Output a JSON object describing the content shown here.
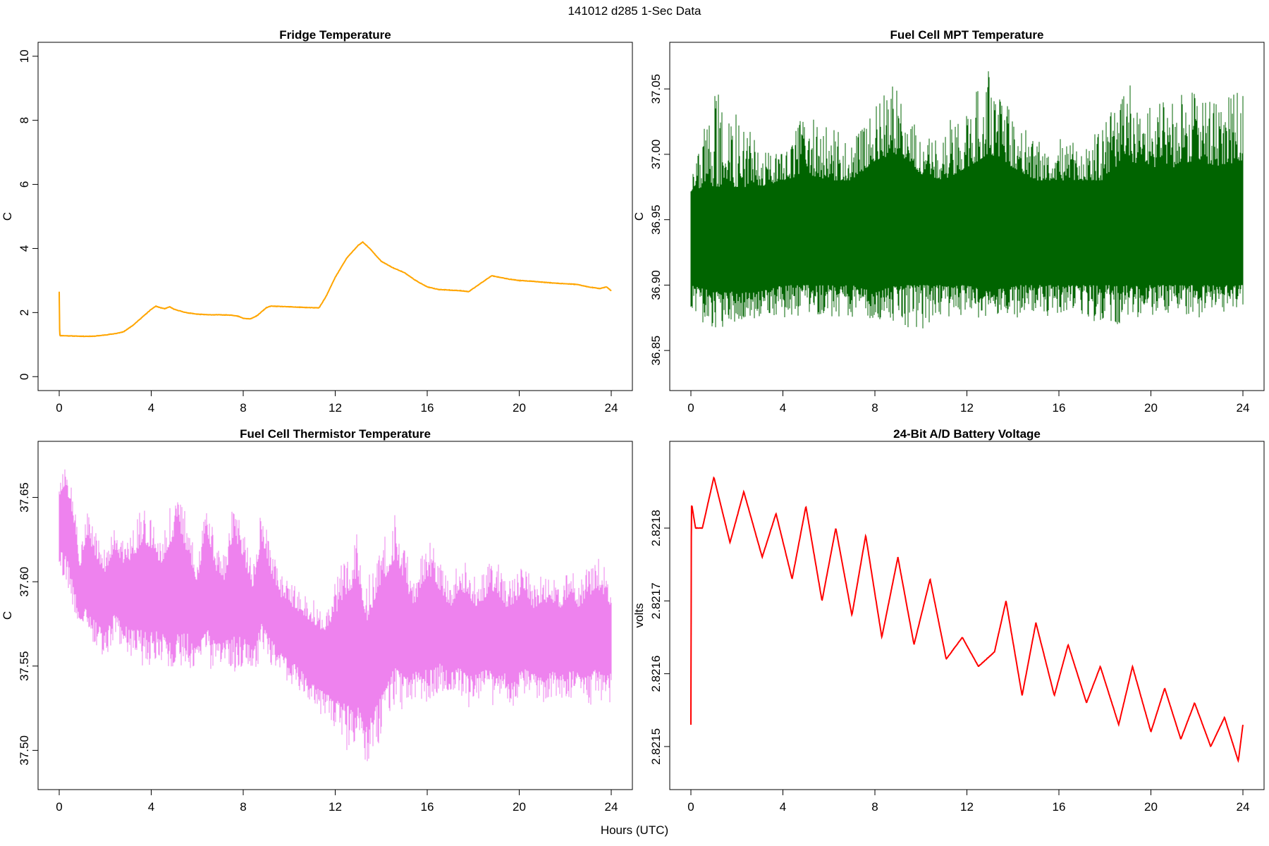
{
  "figure": {
    "title": "141012   d285   1-Sec Data",
    "xlabel": "Hours (UTC)"
  },
  "chart_data": [
    {
      "type": "line",
      "title": "Fridge Temperature",
      "ylabel": "C",
      "xlim": [
        0,
        24
      ],
      "ylim": [
        0,
        10
      ],
      "xticks": [
        0,
        4,
        8,
        12,
        16,
        20,
        24
      ],
      "yticks": [
        "0",
        "2",
        "4",
        "6",
        "8",
        "10"
      ],
      "color": "#FFA500",
      "series": [
        {
          "x": [
            0,
            0.02,
            0.05,
            0.1,
            0.5,
            1,
            1.5,
            2,
            2.5,
            2.8,
            3.2,
            3.6,
            4.0,
            4.2,
            4.4,
            4.6,
            4.8,
            5.0,
            5.5,
            6.0,
            6.5,
            7.0,
            7.5,
            7.8,
            8.0,
            8.3,
            8.6,
            9.0,
            9.2,
            10.0,
            11.0,
            11.3,
            11.6,
            12.0,
            12.5,
            13.0,
            13.2,
            13.5,
            14.0,
            14.5,
            15.0,
            15.5,
            16.0,
            16.5,
            17.0,
            17.5,
            17.8,
            18.2,
            18.6,
            18.8,
            19.5,
            20.0,
            20.5,
            21.0,
            21.5,
            22.0,
            22.5,
            23.0,
            23.5,
            23.8,
            24.0
          ],
          "y": [
            2.65,
            1.3,
            1.28,
            1.28,
            1.27,
            1.26,
            1.26,
            1.3,
            1.35,
            1.4,
            1.6,
            1.85,
            2.1,
            2.2,
            2.15,
            2.12,
            2.18,
            2.1,
            2.0,
            1.95,
            1.93,
            1.93,
            1.92,
            1.88,
            1.82,
            1.8,
            1.9,
            2.15,
            2.2,
            2.18,
            2.15,
            2.15,
            2.5,
            3.1,
            3.7,
            4.1,
            4.2,
            4.0,
            3.6,
            3.4,
            3.25,
            3.0,
            2.8,
            2.72,
            2.7,
            2.68,
            2.65,
            2.85,
            3.05,
            3.15,
            3.05,
            3.0,
            2.98,
            2.95,
            2.92,
            2.9,
            2.88,
            2.8,
            2.75,
            2.8,
            2.68
          ]
        }
      ]
    },
    {
      "type": "line",
      "title": "Fuel Cell MPT Temperature",
      "ylabel": "C",
      "xlim": [
        0,
        24
      ],
      "ylim": [
        36.83,
        37.075
      ],
      "xticks": [
        0,
        4,
        8,
        12,
        16,
        20,
        24
      ],
      "yticks": [
        "36.85",
        "36.90",
        "36.95",
        "37.00",
        "37.05"
      ],
      "color": "#006400",
      "series": [
        {
          "name": "",
          "x": [
            0,
            1,
            2,
            3,
            4,
            5,
            6,
            7,
            8,
            9,
            10,
            11,
            12,
            13,
            14,
            15,
            16,
            17,
            18,
            19,
            20,
            21,
            22,
            23,
            24
          ],
          "y_min": [
            36.875,
            36.865,
            36.87,
            36.875,
            36.875,
            36.875,
            36.875,
            36.875,
            36.87,
            36.87,
            36.865,
            36.875,
            36.875,
            36.875,
            36.875,
            36.875,
            36.875,
            36.875,
            36.87,
            36.87,
            36.875,
            36.875,
            36.875,
            36.875,
            36.885
          ],
          "y_max": [
            36.985,
            37.05,
            37.035,
            37.005,
            37.0,
            37.035,
            37.02,
            37.015,
            37.04,
            37.06,
            37.01,
            37.02,
            37.045,
            37.065,
            37.03,
            37.01,
            37.015,
            37.005,
            37.025,
            37.055,
            37.035,
            37.045,
            37.05,
            37.045,
            37.055
          ],
          "band_low": [
            36.9,
            36.895,
            36.895,
            36.895,
            36.9,
            36.9,
            36.9,
            36.9,
            36.895,
            36.9,
            36.9,
            36.9,
            36.9,
            36.895,
            36.9,
            36.9,
            36.9,
            36.9,
            36.9,
            36.9,
            36.9,
            36.9,
            36.9,
            36.9,
            36.9
          ],
          "band_high": [
            36.97,
            36.975,
            36.975,
            36.975,
            36.98,
            36.985,
            36.98,
            36.98,
            36.995,
            37.0,
            36.985,
            36.98,
            36.99,
            37.0,
            36.99,
            36.98,
            36.98,
            36.98,
            36.98,
            36.995,
            36.99,
            36.99,
            36.995,
            36.99,
            36.995
          ]
        }
      ]
    },
    {
      "type": "line",
      "title": "Fuel Cell Thermistor Temperature",
      "ylabel": "C",
      "xlim": [
        0,
        24
      ],
      "ylim": [
        37.485,
        37.675
      ],
      "xticks": [
        0,
        4,
        8,
        12,
        16,
        20,
        24
      ],
      "yticks": [
        "37.50",
        "37.55",
        "37.60",
        "37.65"
      ],
      "color": "#EE82EE",
      "series": [
        {
          "name": "",
          "x": [
            0,
            0.3,
            0.6,
            0.9,
            1.2,
            1.6,
            2.0,
            2.4,
            2.8,
            3.2,
            3.6,
            4.0,
            4.4,
            4.8,
            5.2,
            5.6,
            6.0,
            6.4,
            6.8,
            7.2,
            7.6,
            8.0,
            8.4,
            8.8,
            9.2,
            9.6,
            10.0,
            10.5,
            11.0,
            11.5,
            12.0,
            12.5,
            13.0,
            13.4,
            13.8,
            14.2,
            14.6,
            15.0,
            15.4,
            15.8,
            16.2,
            16.6,
            17.0,
            17.4,
            17.8,
            18.2,
            18.6,
            19.0,
            19.4,
            19.8,
            20.2,
            20.6,
            21.0,
            21.4,
            21.8,
            22.2,
            22.6,
            23.0,
            23.4,
            23.8,
            24.0
          ],
          "y_min": [
            37.605,
            37.6,
            37.585,
            37.565,
            37.57,
            37.56,
            37.555,
            37.565,
            37.56,
            37.555,
            37.55,
            37.55,
            37.555,
            37.54,
            37.545,
            37.55,
            37.545,
            37.55,
            37.545,
            37.55,
            37.545,
            37.55,
            37.545,
            37.555,
            37.55,
            37.545,
            37.54,
            37.535,
            37.525,
            37.52,
            37.51,
            37.5,
            37.495,
            37.49,
            37.5,
            37.51,
            37.525,
            37.52,
            37.53,
            37.53,
            37.525,
            37.535,
            37.53,
            37.53,
            37.525,
            37.53,
            37.53,
            37.525,
            37.53,
            37.525,
            37.53,
            37.53,
            37.525,
            37.53,
            37.53,
            37.53,
            37.53,
            37.525,
            37.53,
            37.525,
            37.53
          ],
          "y_max": [
            37.665,
            37.67,
            37.655,
            37.62,
            37.645,
            37.63,
            37.62,
            37.635,
            37.625,
            37.63,
            37.645,
            37.64,
            37.625,
            37.645,
            37.655,
            37.635,
            37.615,
            37.655,
            37.625,
            37.615,
            37.65,
            37.63,
            37.61,
            37.645,
            37.62,
            37.605,
            37.6,
            37.595,
            37.59,
            37.585,
            37.6,
            37.62,
            37.63,
            37.6,
            37.62,
            37.63,
            37.64,
            37.625,
            37.6,
            37.62,
            37.625,
            37.61,
            37.6,
            37.615,
            37.61,
            37.6,
            37.61,
            37.615,
            37.6,
            37.605,
            37.615,
            37.6,
            37.605,
            37.605,
            37.6,
            37.61,
            37.6,
            37.61,
            37.615,
            37.61,
            37.6
          ]
        }
      ]
    },
    {
      "type": "line",
      "title": "24-Bit A/D Battery Voltage",
      "ylabel": "volts",
      "xlim": [
        0,
        24
      ],
      "ylim": [
        2.82146,
        2.8219
      ],
      "xticks": [
        0,
        4,
        8,
        12,
        16,
        20,
        24
      ],
      "yticks": [
        "2.8215",
        "2.8216",
        "2.8217",
        "2.8218"
      ],
      "color": "#FF0000",
      "series": [
        {
          "name": "",
          "x": [
            0,
            0.02,
            0.05,
            0.2,
            0.5,
            1.0,
            1.7,
            2.3,
            3.1,
            3.7,
            4.4,
            5.0,
            5.7,
            6.3,
            7.0,
            7.6,
            8.3,
            9.0,
            9.7,
            10.4,
            11.1,
            11.8,
            12.5,
            13.2,
            13.7,
            14.4,
            15.0,
            15.8,
            16.4,
            17.2,
            17.8,
            18.6,
            19.2,
            20.0,
            20.6,
            21.3,
            21.9,
            22.6,
            23.2,
            23.8,
            24.0
          ],
          "y": [
            2.82153,
            2.82183,
            2.82183,
            2.8218,
            2.8218,
            2.82187,
            2.82178,
            2.82185,
            2.82176,
            2.82182,
            2.82173,
            2.82183,
            2.8217,
            2.8218,
            2.82168,
            2.82179,
            2.82165,
            2.82176,
            2.82164,
            2.82173,
            2.82162,
            2.82165,
            2.82161,
            2.82163,
            2.8217,
            2.82157,
            2.82167,
            2.82157,
            2.82164,
            2.82156,
            2.82161,
            2.82153,
            2.82161,
            2.82152,
            2.82158,
            2.82151,
            2.82156,
            2.8215,
            2.82154,
            2.82148,
            2.82153
          ]
        }
      ]
    }
  ]
}
